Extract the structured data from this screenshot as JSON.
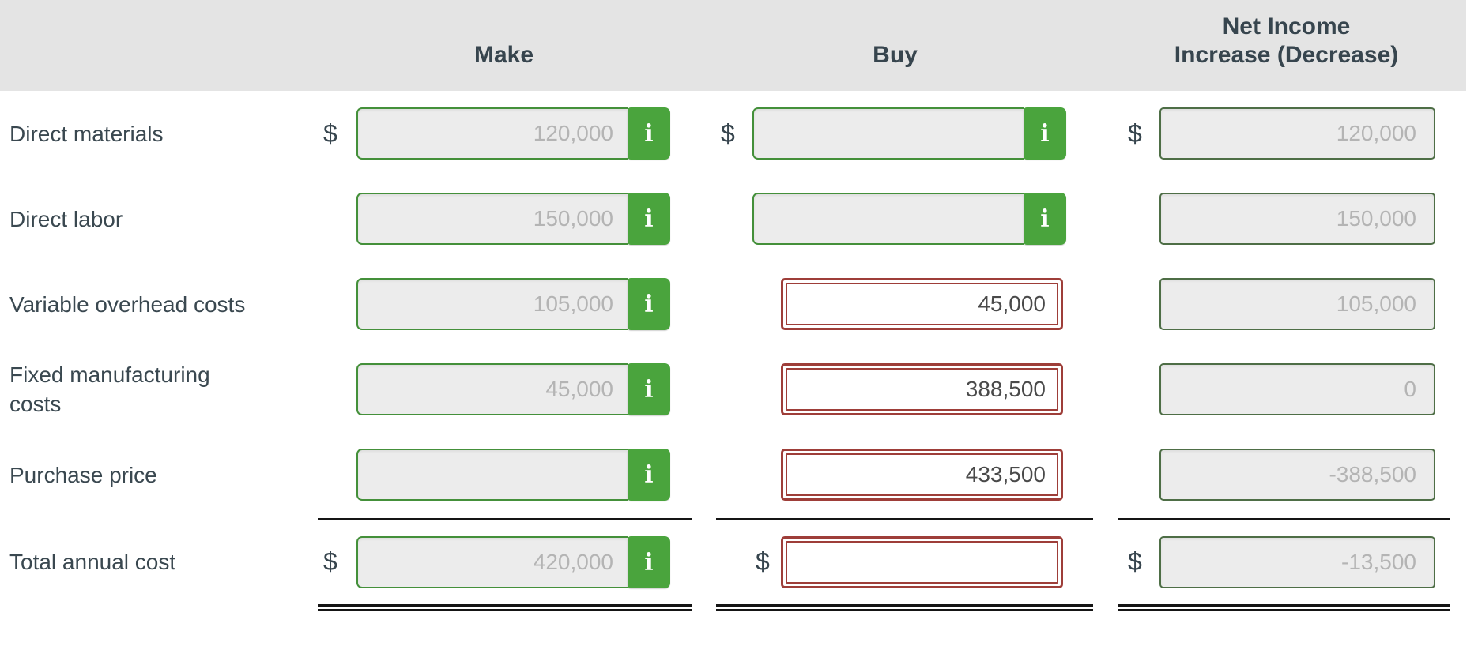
{
  "header": {
    "make": "Make",
    "buy": "Buy",
    "net_income": [
      "Net Income",
      "Increase (Decrease)"
    ]
  },
  "currency_symbol": "$",
  "info_icon_glyph": "i",
  "colors": {
    "header_bg": "#e4e4e4",
    "text_dark": "#37454e",
    "field_bg": "#ececec",
    "green_border": "#44903a",
    "green_button": "#4aa43d",
    "net_border": "#4e6e46",
    "red_border": "#9e3e39",
    "value_muted": "#b4b4b4",
    "value_dark": "#4a4a4a",
    "rule_line": "#151515"
  },
  "rows": [
    {
      "label": "Direct materials",
      "show_dollar": true,
      "make": {
        "type": "info",
        "value": "120,000"
      },
      "buy": {
        "type": "info",
        "value": ""
      },
      "net": {
        "type": "readonly",
        "value": "120,000"
      }
    },
    {
      "label": "Direct labor",
      "show_dollar": false,
      "make": {
        "type": "info",
        "value": "150,000"
      },
      "buy": {
        "type": "info",
        "value": ""
      },
      "net": {
        "type": "readonly",
        "value": "150,000"
      }
    },
    {
      "label": "Variable overhead costs",
      "show_dollar": false,
      "make": {
        "type": "info",
        "value": "105,000"
      },
      "buy": {
        "type": "entry",
        "value": "45,000"
      },
      "net": {
        "type": "readonly",
        "value": "105,000"
      }
    },
    {
      "label": "Fixed manufacturing costs",
      "show_dollar": false,
      "make": {
        "type": "info",
        "value": "45,000"
      },
      "buy": {
        "type": "entry",
        "value": "388,500"
      },
      "net": {
        "type": "readonly",
        "value": "0"
      }
    },
    {
      "label": "Purchase price",
      "show_dollar": false,
      "make": {
        "type": "info",
        "value": ""
      },
      "buy": {
        "type": "entry",
        "value": "433,500"
      },
      "net": {
        "type": "readonly",
        "value": "-388,500"
      }
    }
  ],
  "total_row": {
    "label": "Total annual cost",
    "show_dollar": true,
    "make": {
      "type": "info",
      "value": "420,000"
    },
    "buy": {
      "type": "entry",
      "value": ""
    },
    "net": {
      "type": "readonly",
      "value": "-13,500"
    }
  }
}
